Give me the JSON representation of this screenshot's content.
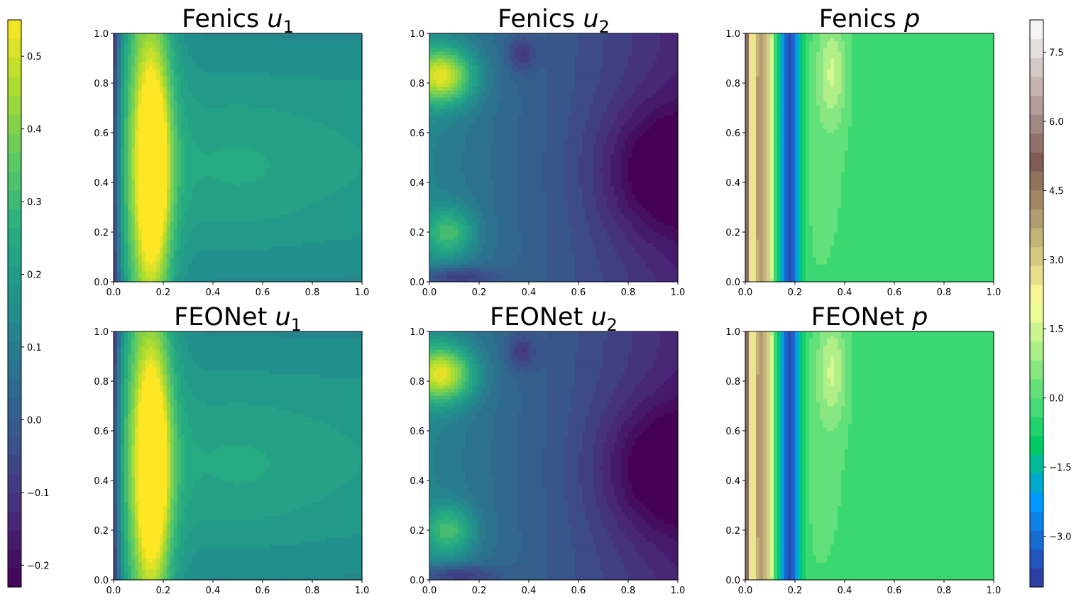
{
  "chart_data": [
    {
      "type": "heatmap",
      "title": "Fenics",
      "var": "u",
      "sub": "1",
      "field": "u1",
      "xlim": [
        0,
        1
      ],
      "ylim": [
        0,
        1
      ],
      "xticks": [
        "0.0",
        "0.2",
        "0.4",
        "0.6",
        "0.8",
        "1.0"
      ],
      "yticks": [
        "0.0",
        "0.2",
        "0.4",
        "0.6",
        "0.8",
        "1.0"
      ],
      "colormap": "viridis",
      "vmin": -0.23,
      "vmax": 0.55
    },
    {
      "type": "heatmap",
      "title": "Fenics",
      "var": "u",
      "sub": "2",
      "field": "u2",
      "xlim": [
        0,
        1
      ],
      "ylim": [
        0,
        1
      ],
      "xticks": [
        "0.0",
        "0.2",
        "0.4",
        "0.6",
        "0.8",
        "1.0"
      ],
      "yticks": [
        "0.0",
        "0.2",
        "0.4",
        "0.6",
        "0.8",
        "1.0"
      ],
      "colormap": "viridis",
      "vmin": -0.23,
      "vmax": 0.55
    },
    {
      "type": "heatmap",
      "title": "Fenics",
      "var": "p",
      "sub": "",
      "field": "p",
      "xlim": [
        0,
        1
      ],
      "ylim": [
        0,
        1
      ],
      "xticks": [
        "0.0",
        "0.2",
        "0.4",
        "0.6",
        "0.8",
        "1.0"
      ],
      "yticks": [
        "0.0",
        "0.2",
        "0.4",
        "0.6",
        "0.8",
        "1.0"
      ],
      "colormap": "terrain",
      "vmin": -4.1,
      "vmax": 8.2
    },
    {
      "type": "heatmap",
      "title": "FEONet",
      "var": "u",
      "sub": "1",
      "field": "u1",
      "xlim": [
        0,
        1
      ],
      "ylim": [
        0,
        1
      ],
      "xticks": [
        "0.0",
        "0.2",
        "0.4",
        "0.6",
        "0.8",
        "1.0"
      ],
      "yticks": [
        "0.0",
        "0.2",
        "0.4",
        "0.6",
        "0.8",
        "1.0"
      ],
      "colormap": "viridis",
      "vmin": -0.23,
      "vmax": 0.55
    },
    {
      "type": "heatmap",
      "title": "FEONet",
      "var": "u",
      "sub": "2",
      "field": "u2",
      "xlim": [
        0,
        1
      ],
      "ylim": [
        0,
        1
      ],
      "xticks": [
        "0.0",
        "0.2",
        "0.4",
        "0.6",
        "0.8",
        "1.0"
      ],
      "yticks": [
        "0.0",
        "0.2",
        "0.4",
        "0.6",
        "0.8",
        "1.0"
      ],
      "colormap": "viridis",
      "vmin": -0.23,
      "vmax": 0.55
    },
    {
      "type": "heatmap",
      "title": "FEONet",
      "var": "p",
      "sub": "",
      "field": "p",
      "xlim": [
        0,
        1
      ],
      "ylim": [
        0,
        1
      ],
      "xticks": [
        "0.0",
        "0.2",
        "0.4",
        "0.6",
        "0.8",
        "1.0"
      ],
      "yticks": [
        "0.0",
        "0.2",
        "0.4",
        "0.6",
        "0.8",
        "1.0"
      ],
      "colormap": "terrain",
      "vmin": -4.1,
      "vmax": 8.2
    }
  ],
  "colorbars": {
    "left": {
      "colormap": "viridis",
      "range": [
        -0.23,
        0.55
      ],
      "ticks": [
        {
          "value": 0.5,
          "label": "0.5"
        },
        {
          "value": 0.4,
          "label": "0.4"
        },
        {
          "value": 0.3,
          "label": "0.3"
        },
        {
          "value": 0.2,
          "label": "0.2"
        },
        {
          "value": 0.1,
          "label": "0.1"
        },
        {
          "value": 0.0,
          "label": "0.0"
        },
        {
          "value": -0.1,
          "label": "−0.1"
        },
        {
          "value": -0.2,
          "label": "−0.2"
        }
      ]
    },
    "right": {
      "colormap": "terrain",
      "range": [
        -4.1,
        8.2
      ],
      "ticks": [
        {
          "value": 7.5,
          "label": "7.5"
        },
        {
          "value": 6.0,
          "label": "6.0"
        },
        {
          "value": 4.5,
          "label": "4.5"
        },
        {
          "value": 3.0,
          "label": "3.0"
        },
        {
          "value": 1.5,
          "label": "1.5"
        },
        {
          "value": 0.0,
          "label": "0.0"
        },
        {
          "value": -1.5,
          "label": "−1.5"
        },
        {
          "value": -3.0,
          "label": "−3.0"
        }
      ]
    }
  }
}
